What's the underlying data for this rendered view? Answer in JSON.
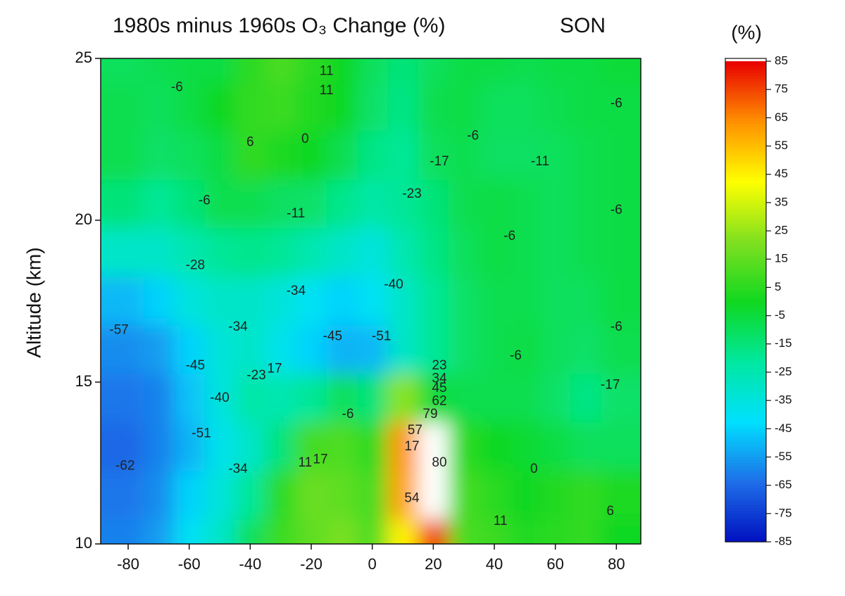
{
  "chart_data": {
    "type": "contour",
    "title": "1980s minus 1960s O₃ Change (%)",
    "season": "SON",
    "y_label": "Altitude (km)",
    "colorbar_label": "(%)",
    "x": [
      -80,
      -70,
      -60,
      -50,
      -40,
      -30,
      -20,
      -10,
      0,
      10,
      20,
      30,
      40,
      50,
      60,
      70,
      80
    ],
    "y": [
      25,
      23.5,
      22,
      20.5,
      19,
      17.5,
      16,
      14.5,
      13,
      11.5,
      10
    ],
    "z": [
      [
        -10,
        -8,
        -6,
        -6,
        5,
        11,
        5,
        0,
        -10,
        -15,
        -10,
        -6,
        -6,
        -8,
        -6,
        -6,
        -4
      ],
      [
        -8,
        -10,
        -6,
        0,
        6,
        8,
        3,
        0,
        -12,
        -17,
        -8,
        -6,
        -10,
        -10,
        -8,
        -6,
        -6
      ],
      [
        -8,
        -12,
        -10,
        -6,
        6,
        2,
        0,
        -8,
        -17,
        -20,
        -10,
        -8,
        -11,
        -11,
        -10,
        -8,
        -6
      ],
      [
        -15,
        -20,
        -15,
        -8,
        -8,
        -11,
        -12,
        -18,
        -23,
        -20,
        -15,
        -8,
        -6,
        -8,
        -10,
        -8,
        -6
      ],
      [
        -30,
        -30,
        -25,
        -20,
        -18,
        -20,
        -25,
        -30,
        -35,
        -25,
        -17,
        -10,
        -6,
        -8,
        -10,
        -8,
        -6
      ],
      [
        -50,
        -45,
        -35,
        -30,
        -30,
        -34,
        -40,
        -45,
        -40,
        -30,
        -20,
        -12,
        -8,
        -8,
        -10,
        -10,
        -6
      ],
      [
        -58,
        -55,
        -45,
        -34,
        -30,
        -38,
        -45,
        -51,
        -50,
        -30,
        -20,
        -12,
        -8,
        -6,
        -10,
        -12,
        -8
      ],
      [
        -62,
        -60,
        -48,
        -35,
        -23,
        -25,
        -20,
        -10,
        -15,
        23,
        -5,
        -8,
        -8,
        -8,
        -12,
        -17,
        -12
      ],
      [
        -65,
        -60,
        -51,
        -38,
        -30,
        -15,
        10,
        12,
        5,
        62,
        90,
        5,
        0,
        -3,
        -6,
        -10,
        -10
      ],
      [
        -62,
        -58,
        -45,
        -34,
        -20,
        5,
        17,
        15,
        10,
        60,
        90,
        10,
        5,
        0,
        3,
        6,
        2
      ],
      [
        -60,
        -55,
        -40,
        -30,
        -10,
        8,
        15,
        20,
        12,
        45,
        75,
        11,
        8,
        3,
        5,
        6,
        0
      ]
    ],
    "xlim": [
      -89,
      88
    ],
    "ylim": [
      10,
      25
    ],
    "xticks": [
      -80,
      -60,
      -40,
      -20,
      0,
      20,
      40,
      60,
      80
    ],
    "yticks": [
      10,
      15,
      20,
      25
    ],
    "clim": [
      -85,
      85
    ],
    "colormap": [
      "#0010c0",
      "#1e6ee8",
      "#00e0ff",
      "#00e8a0",
      "#10d820",
      "#80e020",
      "#ffff00",
      "#ff9000",
      "#e80000"
    ],
    "over_color": "#ffffff",
    "cticks": [
      85,
      75,
      65,
      55,
      45,
      35,
      25,
      15,
      5,
      -5,
      -15,
      -25,
      -35,
      -45,
      -55,
      -65,
      -75,
      -85
    ],
    "contour_labels": [
      {
        "text": "11",
        "x": -15,
        "y": 24.6
      },
      {
        "text": "11",
        "x": -15,
        "y": 24.0
      },
      {
        "text": "-6",
        "x": -64,
        "y": 24.1
      },
      {
        "text": "6",
        "x": -40,
        "y": 22.4
      },
      {
        "text": "0",
        "x": -22,
        "y": 22.5
      },
      {
        "text": "-17",
        "x": 22,
        "y": 21.8
      },
      {
        "text": "-6",
        "x": 33,
        "y": 22.6
      },
      {
        "text": "-11",
        "x": 55,
        "y": 21.8
      },
      {
        "text": "-6",
        "x": 80,
        "y": 23.6
      },
      {
        "text": "-23",
        "x": 13,
        "y": 20.8
      },
      {
        "text": "-6",
        "x": -55,
        "y": 20.6
      },
      {
        "text": "-11",
        "x": -25,
        "y": 20.2
      },
      {
        "text": "-6",
        "x": 80,
        "y": 20.3
      },
      {
        "text": "-6",
        "x": 45,
        "y": 19.5
      },
      {
        "text": "-28",
        "x": -58,
        "y": 18.6
      },
      {
        "text": "-34",
        "x": -25,
        "y": 17.8
      },
      {
        "text": "-40",
        "x": 7,
        "y": 18.0
      },
      {
        "text": "-34",
        "x": -44,
        "y": 16.7
      },
      {
        "text": "-45",
        "x": -13,
        "y": 16.4
      },
      {
        "text": "-51",
        "x": 3,
        "y": 16.4
      },
      {
        "text": "-57",
        "x": -83,
        "y": 16.6
      },
      {
        "text": "-6",
        "x": 80,
        "y": 16.7
      },
      {
        "text": "-6",
        "x": 47,
        "y": 15.8
      },
      {
        "text": "-45",
        "x": -58,
        "y": 15.5
      },
      {
        "text": "-23",
        "x": -38,
        "y": 15.2
      },
      {
        "text": "17",
        "x": -32,
        "y": 15.4
      },
      {
        "text": "23",
        "x": 22,
        "y": 15.5
      },
      {
        "text": "34",
        "x": 22,
        "y": 15.1
      },
      {
        "text": "45",
        "x": 22,
        "y": 14.8
      },
      {
        "text": "62",
        "x": 22,
        "y": 14.4
      },
      {
        "text": "-17",
        "x": 78,
        "y": 14.9
      },
      {
        "text": "-40",
        "x": -50,
        "y": 14.5
      },
      {
        "text": "79",
        "x": 19,
        "y": 14.0
      },
      {
        "text": "-6",
        "x": -8,
        "y": 14.0
      },
      {
        "text": "-51",
        "x": -56,
        "y": 13.4
      },
      {
        "text": "57",
        "x": 14,
        "y": 13.5
      },
      {
        "text": "17",
        "x": 13,
        "y": 13.0
      },
      {
        "text": "11",
        "x": -22,
        "y": 12.5
      },
      {
        "text": "17",
        "x": -17,
        "y": 12.6
      },
      {
        "text": "80",
        "x": 22,
        "y": 12.5
      },
      {
        "text": "-62",
        "x": -81,
        "y": 12.4
      },
      {
        "text": "-34",
        "x": -44,
        "y": 12.3
      },
      {
        "text": "0",
        "x": 53,
        "y": 12.3
      },
      {
        "text": "54",
        "x": 13,
        "y": 11.4
      },
      {
        "text": "6",
        "x": 78,
        "y": 11.0
      },
      {
        "text": "11",
        "x": 42,
        "y": 10.7
      }
    ]
  }
}
